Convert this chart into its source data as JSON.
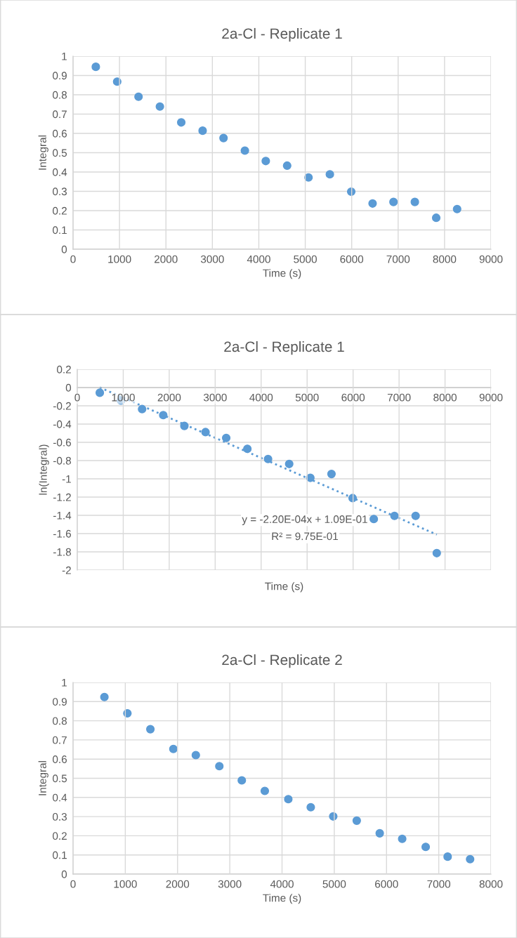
{
  "chart_data": [
    {
      "type": "scatter",
      "title": "2a-Cl - Replicate 1",
      "xlabel": "Time (s)",
      "ylabel": "Integral",
      "marker": "circle",
      "grid": true,
      "x": [
        490,
        950,
        1410,
        1870,
        2330,
        2790,
        3240,
        3700,
        4150,
        4610,
        5070,
        5530,
        5990,
        6450,
        6900,
        7360,
        7820,
        8270
      ],
      "series": [
        {
          "color": "#5b9bd5",
          "values": [
            0.945,
            0.868,
            0.79,
            0.739,
            0.657,
            0.614,
            0.576,
            0.511,
            0.457,
            0.433,
            0.372,
            0.388,
            0.298,
            0.237,
            0.245,
            0.245,
            0.163,
            0.208
          ]
        }
      ],
      "xlim": [
        0,
        9000
      ],
      "xticks": [
        0,
        1000,
        2000,
        3000,
        4000,
        5000,
        6000,
        7000,
        8000,
        9000
      ],
      "ylim": [
        0,
        1
      ],
      "yticks": [
        0,
        0.1,
        0.2,
        0.3,
        0.4,
        0.5,
        0.6,
        0.7,
        0.8,
        0.9,
        1
      ]
    },
    {
      "type": "scatter",
      "title": "2a-Cl - Replicate 1",
      "xlabel": "Time (s)",
      "ylabel": "ln(Integral)",
      "marker": "circle",
      "grid": true,
      "x": [
        490,
        950,
        1410,
        1870,
        2330,
        2790,
        3240,
        3700,
        4150,
        4610,
        5070,
        5530,
        5990,
        6450,
        6900,
        7360,
        7820
      ],
      "series": [
        {
          "color": "#5b9bd5",
          "values": [
            -0.057,
            -0.142,
            -0.236,
            -0.302,
            -0.42,
            -0.488,
            -0.552,
            -0.671,
            -0.783,
            -0.837,
            -0.989,
            -0.947,
            -1.211,
            -1.44,
            -1.406,
            -1.406,
            -1.814
          ]
        },
        {
          "type": "line",
          "color": "#5b9bd5",
          "line_style": "dotted",
          "marker": "none",
          "x": [
            490,
            7820
          ],
          "values": [
            0.001,
            -1.611
          ]
        }
      ],
      "annotations": [
        "y = -2.20E-04x + 1.09E-01",
        "R² = 9.75E-01"
      ],
      "xlim": [
        0,
        9000
      ],
      "xticks": [
        0,
        1000,
        2000,
        3000,
        4000,
        5000,
        6000,
        7000,
        8000,
        9000
      ],
      "ylim": [
        -2,
        0.2
      ],
      "yticks": [
        -2,
        -1.8,
        -1.6,
        -1.4,
        -1.2,
        -1,
        -0.8,
        -0.6,
        -0.4,
        -0.2,
        0,
        0.2
      ]
    },
    {
      "type": "scatter",
      "title": "2a-Cl - Replicate 2",
      "xlabel": "Time (s)",
      "ylabel": "Integral",
      "marker": "circle",
      "grid": true,
      "x": [
        600,
        1040,
        1480,
        1920,
        2350,
        2800,
        3230,
        3670,
        4120,
        4550,
        4980,
        5430,
        5870,
        6300,
        6750,
        7170,
        7600
      ],
      "series": [
        {
          "color": "#5b9bd5",
          "values": [
            0.924,
            0.839,
            0.756,
            0.653,
            0.621,
            0.563,
            0.489,
            0.434,
            0.391,
            0.349,
            0.301,
            0.279,
            0.213,
            0.184,
            0.142,
            0.091,
            0.078
          ]
        }
      ],
      "xlim": [
        0,
        8000
      ],
      "xticks": [
        0,
        1000,
        2000,
        3000,
        4000,
        5000,
        6000,
        7000,
        8000
      ],
      "ylim": [
        0,
        1
      ],
      "yticks": [
        0,
        0.1,
        0.2,
        0.3,
        0.4,
        0.5,
        0.6,
        0.7,
        0.8,
        0.9,
        1
      ]
    }
  ]
}
